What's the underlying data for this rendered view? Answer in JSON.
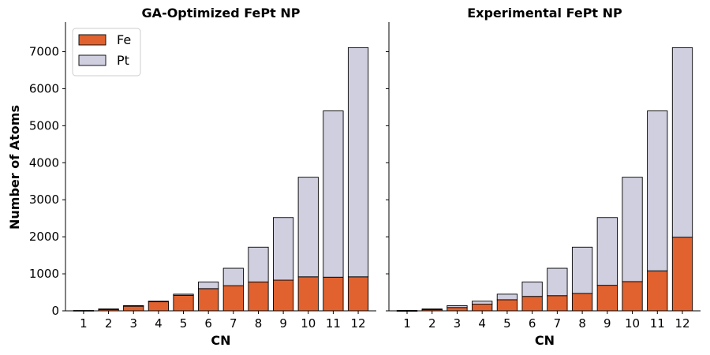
{
  "colors": {
    "fe": "#E1622F",
    "pt": "#D0CFE0"
  },
  "ylabel": "Number of Atoms",
  "chart_data": [
    {
      "type": "bar",
      "stacked": true,
      "title": "GA-Optimized FePt NP",
      "xlabel": "CN",
      "ylabel": "Number of Atoms",
      "categories": [
        "1",
        "2",
        "3",
        "4",
        "5",
        "6",
        "7",
        "8",
        "9",
        "10",
        "11",
        "12"
      ],
      "series": [
        {
          "name": "Fe",
          "values": [
            10,
            45,
            130,
            250,
            420,
            600,
            680,
            780,
            830,
            920,
            910,
            920
          ]
        },
        {
          "name": "Pt",
          "values": [
            0,
            5,
            10,
            10,
            30,
            180,
            470,
            940,
            1690,
            2690,
            4490,
            6190
          ]
        }
      ],
      "ylim": [
        0,
        7800
      ],
      "yticks": [
        0,
        1000,
        2000,
        3000,
        4000,
        5000,
        6000,
        7000
      ],
      "legend": "top-left"
    },
    {
      "type": "bar",
      "stacked": true,
      "title": "Experimental FePt NP",
      "xlabel": "CN",
      "categories": [
        "1",
        "2",
        "3",
        "4",
        "5",
        "6",
        "7",
        "8",
        "9",
        "10",
        "11",
        "12"
      ],
      "series": [
        {
          "name": "Fe",
          "values": [
            5,
            30,
            90,
            180,
            300,
            390,
            410,
            470,
            690,
            790,
            1080,
            1990
          ]
        },
        {
          "name": "Pt",
          "values": [
            5,
            20,
            50,
            80,
            150,
            390,
            740,
            1250,
            1830,
            2820,
            4320,
            5120
          ]
        }
      ],
      "ylim": [
        0,
        7800
      ],
      "shared_y": true
    }
  ]
}
